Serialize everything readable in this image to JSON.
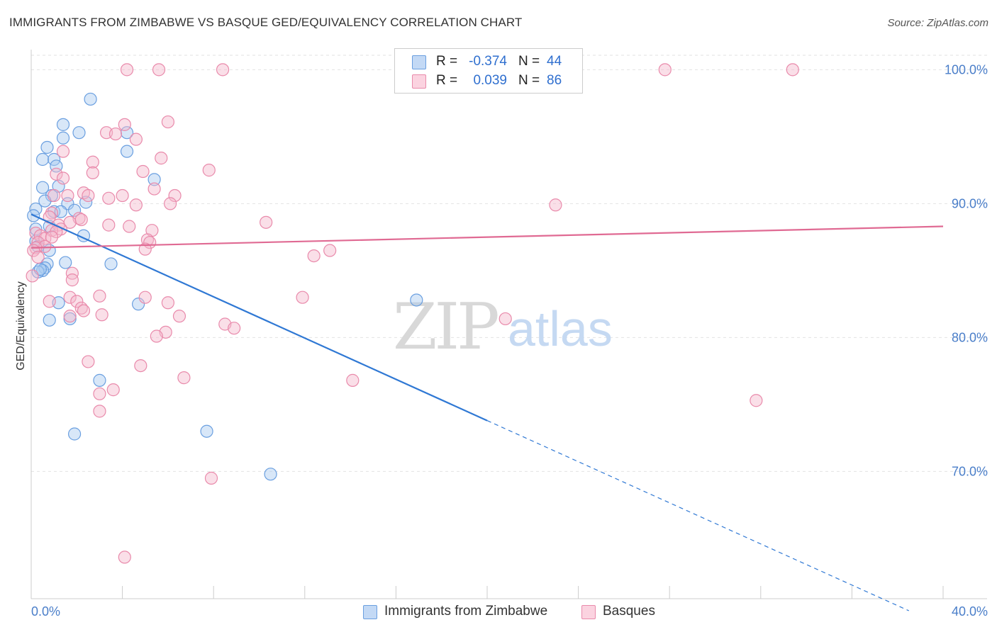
{
  "header": {
    "title": "IMMIGRANTS FROM ZIMBABWE VS BASQUE GED/EQUIVALENCY CORRELATION CHART",
    "source": "Source: ZipAtlas.com"
  },
  "watermark": {
    "zip": "ZIP",
    "atlas": "atlas"
  },
  "legend": {
    "rows": [
      {
        "r_label": "R =",
        "r_value": "-0.374",
        "n_label": "N =",
        "n_value": "44",
        "color": "#a9c9f0"
      },
      {
        "r_label": "R =",
        "r_value": "0.039",
        "n_label": "N =",
        "n_value": "86",
        "color": "#f5b8cd"
      }
    ]
  },
  "bottom_legend": {
    "items": [
      {
        "label": "Immigrants from Zimbabwe",
        "color": "#a9c9f0"
      },
      {
        "label": "Basques",
        "color": "#f5b8cd"
      }
    ]
  },
  "chart_data": {
    "type": "scatter",
    "title": "IMMIGRANTS FROM ZIMBABWE VS BASQUE GED/EQUIVALENCY CORRELATION CHART",
    "xlabel": "",
    "ylabel": "GED/Equivalency",
    "xlim": [
      0,
      40
    ],
    "ylim": [
      60.5,
      101.5
    ],
    "x_tick_labels": [
      "0.0%",
      "40.0%"
    ],
    "y_ticks": [
      70,
      80,
      90,
      100
    ],
    "y_tick_labels": [
      "70.0%",
      "80.0%",
      "90.0%",
      "100.0%"
    ],
    "grid": true,
    "series": [
      {
        "name": "Immigrants from Zimbabwe",
        "color": "#6a9fe0",
        "fill": "#a9c9f0",
        "line_color": "#2f78d4",
        "r": -0.374,
        "n": 44,
        "trend": {
          "x0": 0,
          "y0": 89.2,
          "x1": 20.0,
          "y1": 73.8,
          "dashed_to_x": 38.5,
          "dashed_to_y": 59.6
        },
        "points": [
          [
            2.6,
            97.8
          ],
          [
            1.4,
            95.9
          ],
          [
            2.1,
            95.3
          ],
          [
            1.4,
            94.9
          ],
          [
            4.2,
            95.3
          ],
          [
            0.7,
            94.2
          ],
          [
            0.5,
            93.3
          ],
          [
            1.0,
            93.3
          ],
          [
            4.2,
            93.9
          ],
          [
            1.1,
            92.8
          ],
          [
            5.4,
            91.8
          ],
          [
            0.5,
            91.2
          ],
          [
            1.2,
            91.3
          ],
          [
            0.9,
            90.6
          ],
          [
            0.6,
            90.2
          ],
          [
            1.6,
            90.0
          ],
          [
            2.4,
            90.1
          ],
          [
            0.2,
            89.6
          ],
          [
            1.0,
            89.4
          ],
          [
            1.3,
            89.4
          ],
          [
            1.9,
            89.5
          ],
          [
            0.1,
            89.1
          ],
          [
            0.2,
            88.1
          ],
          [
            0.8,
            88.3
          ],
          [
            2.3,
            87.6
          ],
          [
            0.2,
            87.2
          ],
          [
            0.3,
            86.8
          ],
          [
            0.8,
            86.5
          ],
          [
            1.5,
            85.6
          ],
          [
            3.5,
            85.5
          ],
          [
            0.7,
            85.5
          ],
          [
            0.6,
            85.2
          ],
          [
            0.5,
            85.0
          ],
          [
            0.3,
            84.9
          ],
          [
            0.4,
            85.1
          ],
          [
            16.9,
            82.8
          ],
          [
            1.2,
            82.6
          ],
          [
            4.7,
            82.5
          ],
          [
            0.8,
            81.3
          ],
          [
            1.7,
            81.4
          ],
          [
            3.0,
            76.8
          ],
          [
            1.9,
            72.8
          ],
          [
            7.7,
            73.0
          ],
          [
            10.5,
            69.8
          ]
        ]
      },
      {
        "name": "Basques",
        "color": "#e98aab",
        "fill": "#f5b8cd",
        "line_color": "#e06a93",
        "r": 0.039,
        "n": 86,
        "trend": {
          "x0": 0,
          "y0": 86.7,
          "x1": 40,
          "y1": 88.3
        },
        "points": [
          [
            4.2,
            100.0
          ],
          [
            5.6,
            100.0
          ],
          [
            8.4,
            100.0
          ],
          [
            27.8,
            100.0
          ],
          [
            33.4,
            100.0
          ],
          [
            6.0,
            96.1
          ],
          [
            4.1,
            95.9
          ],
          [
            3.3,
            95.3
          ],
          [
            3.7,
            95.2
          ],
          [
            4.6,
            94.8
          ],
          [
            1.4,
            93.9
          ],
          [
            5.7,
            93.4
          ],
          [
            2.7,
            93.1
          ],
          [
            7.8,
            92.5
          ],
          [
            4.9,
            92.4
          ],
          [
            2.7,
            92.3
          ],
          [
            1.1,
            92.2
          ],
          [
            1.4,
            91.9
          ],
          [
            5.4,
            91.1
          ],
          [
            2.3,
            90.8
          ],
          [
            2.5,
            90.6
          ],
          [
            6.3,
            90.6
          ],
          [
            4.0,
            90.6
          ],
          [
            3.4,
            90.4
          ],
          [
            1.0,
            90.6
          ],
          [
            1.6,
            90.6
          ],
          [
            6.1,
            90.0
          ],
          [
            4.6,
            89.9
          ],
          [
            23.0,
            89.9
          ],
          [
            0.9,
            89.3
          ],
          [
            0.8,
            89.0
          ],
          [
            2.1,
            88.9
          ],
          [
            1.7,
            88.6
          ],
          [
            2.2,
            88.8
          ],
          [
            10.3,
            88.6
          ],
          [
            3.4,
            88.4
          ],
          [
            4.3,
            88.3
          ],
          [
            1.2,
            88.4
          ],
          [
            1.3,
            88.1
          ],
          [
            0.9,
            88.0
          ],
          [
            5.3,
            88.0
          ],
          [
            1.1,
            87.9
          ],
          [
            0.2,
            87.8
          ],
          [
            0.4,
            87.6
          ],
          [
            0.6,
            87.4
          ],
          [
            0.9,
            87.5
          ],
          [
            5.1,
            87.3
          ],
          [
            5.2,
            87.1
          ],
          [
            0.3,
            87.1
          ],
          [
            0.6,
            86.8
          ],
          [
            0.2,
            86.7
          ],
          [
            0.1,
            86.5
          ],
          [
            5.0,
            86.6
          ],
          [
            13.1,
            86.5
          ],
          [
            12.4,
            86.1
          ],
          [
            0.3,
            86.0
          ],
          [
            1.8,
            84.8
          ],
          [
            1.8,
            84.3
          ],
          [
            0.05,
            84.6
          ],
          [
            3.0,
            83.1
          ],
          [
            11.9,
            83.0
          ],
          [
            5.0,
            83.0
          ],
          [
            1.7,
            83.0
          ],
          [
            0.8,
            82.7
          ],
          [
            2.0,
            82.7
          ],
          [
            6.0,
            82.6
          ],
          [
            2.2,
            82.2
          ],
          [
            2.3,
            82.0
          ],
          [
            3.1,
            81.7
          ],
          [
            1.7,
            81.6
          ],
          [
            6.5,
            81.6
          ],
          [
            20.8,
            81.4
          ],
          [
            8.5,
            81.0
          ],
          [
            8.9,
            80.7
          ],
          [
            5.9,
            80.4
          ],
          [
            5.5,
            80.1
          ],
          [
            2.5,
            78.2
          ],
          [
            4.8,
            77.9
          ],
          [
            6.7,
            77.0
          ],
          [
            14.1,
            76.8
          ],
          [
            3.6,
            76.1
          ],
          [
            3.0,
            75.8
          ],
          [
            31.8,
            75.3
          ],
          [
            3.0,
            74.5
          ],
          [
            7.9,
            69.5
          ],
          [
            4.1,
            63.6
          ]
        ]
      }
    ]
  }
}
